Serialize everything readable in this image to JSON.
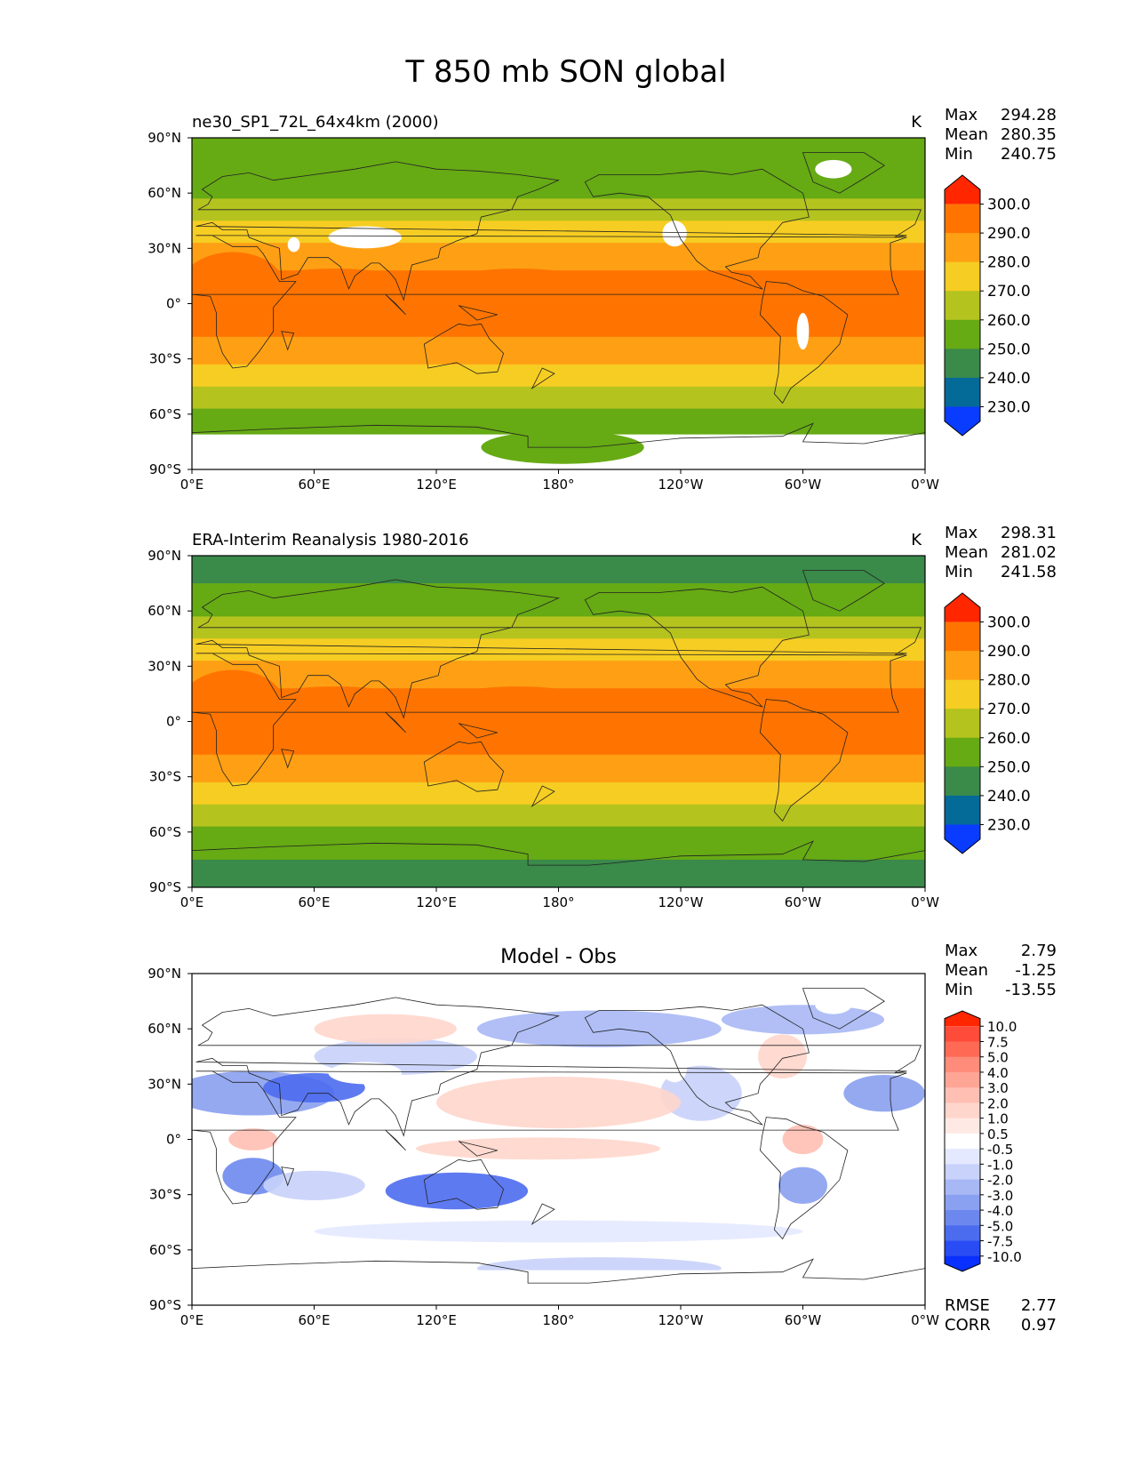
{
  "figure_title": "T 850 mb SON global",
  "axis_ticks": {
    "x": [
      "0°E",
      "60°E",
      "120°E",
      "180°",
      "120°W",
      "60°W",
      "0°W"
    ],
    "y": [
      "90°N",
      "60°N",
      "30°N",
      "0°",
      "30°S",
      "60°S",
      "90°S"
    ]
  },
  "chart_data": [
    {
      "type": "heatmap",
      "projection": "cylindrical lat-lon global map",
      "left_title": "ne30_SP1_72L_64x4km (2000)",
      "center_title": "",
      "units": "K",
      "stats": [
        {
          "label": "Max",
          "value": "294.28"
        },
        {
          "label": "Mean",
          "value": "280.35"
        },
        {
          "label": "Min",
          "value": "240.75"
        }
      ],
      "colorbar": {
        "levels": [
          "300.0",
          "290.0",
          "280.0",
          "270.0",
          "260.0",
          "250.0",
          "240.0",
          "230.0"
        ],
        "colors": [
          "#ff2600",
          "#ff7400",
          "#ffa014",
          "#f6cd22",
          "#b4c31e",
          "#66aa14",
          "#3a8a4a",
          "#046a98",
          "#0a3cff"
        ]
      },
      "xlim": [
        0,
        360
      ],
      "ylim": [
        -90,
        90
      ]
    },
    {
      "type": "heatmap",
      "projection": "cylindrical lat-lon global map",
      "left_title": "ERA-Interim Reanalysis 1980-2016",
      "center_title": "",
      "units": "K",
      "stats": [
        {
          "label": "Max",
          "value": "298.31"
        },
        {
          "label": "Mean",
          "value": "281.02"
        },
        {
          "label": "Min",
          "value": "241.58"
        }
      ],
      "colorbar": {
        "levels": [
          "300.0",
          "290.0",
          "280.0",
          "270.0",
          "260.0",
          "250.0",
          "240.0",
          "230.0"
        ],
        "colors": [
          "#ff2600",
          "#ff7400",
          "#ffa014",
          "#f6cd22",
          "#b4c31e",
          "#66aa14",
          "#3a8a4a",
          "#046a98",
          "#0a3cff"
        ]
      },
      "xlim": [
        0,
        360
      ],
      "ylim": [
        -90,
        90
      ]
    },
    {
      "type": "heatmap",
      "projection": "cylindrical lat-lon global map",
      "left_title": "",
      "center_title": "Model - Obs",
      "units": "",
      "stats": [
        {
          "label": "Max",
          "value": "2.79"
        },
        {
          "label": "Mean",
          "value": "-1.25"
        },
        {
          "label": "Min",
          "value": "-13.55"
        }
      ],
      "extra_stats": [
        {
          "label": "RMSE",
          "value": "2.77"
        },
        {
          "label": "CORR",
          "value": "0.97"
        }
      ],
      "colorbar": {
        "levels": [
          "10.0",
          "7.5",
          "5.0",
          "4.0",
          "3.0",
          "2.0",
          "1.0",
          "0.5",
          "-0.5",
          "-1.0",
          "-2.0",
          "-3.0",
          "-4.0",
          "-5.0",
          "-7.5",
          "-10.0"
        ],
        "colors": [
          "#ff2600",
          "#ff4b3a",
          "#ff6a55",
          "#ff8c7a",
          "#ffa596",
          "#ffbfb3",
          "#ffd6cc",
          "#ffe9e4",
          "#ffffff",
          "#e4e9ff",
          "#c8d2fa",
          "#a8b8f5",
          "#8aa0f0",
          "#6c88ee",
          "#4c6cf0",
          "#2a4cf5",
          "#0a30ff"
        ]
      },
      "xlim": [
        0,
        360
      ],
      "ylim": [
        -90,
        90
      ]
    }
  ]
}
